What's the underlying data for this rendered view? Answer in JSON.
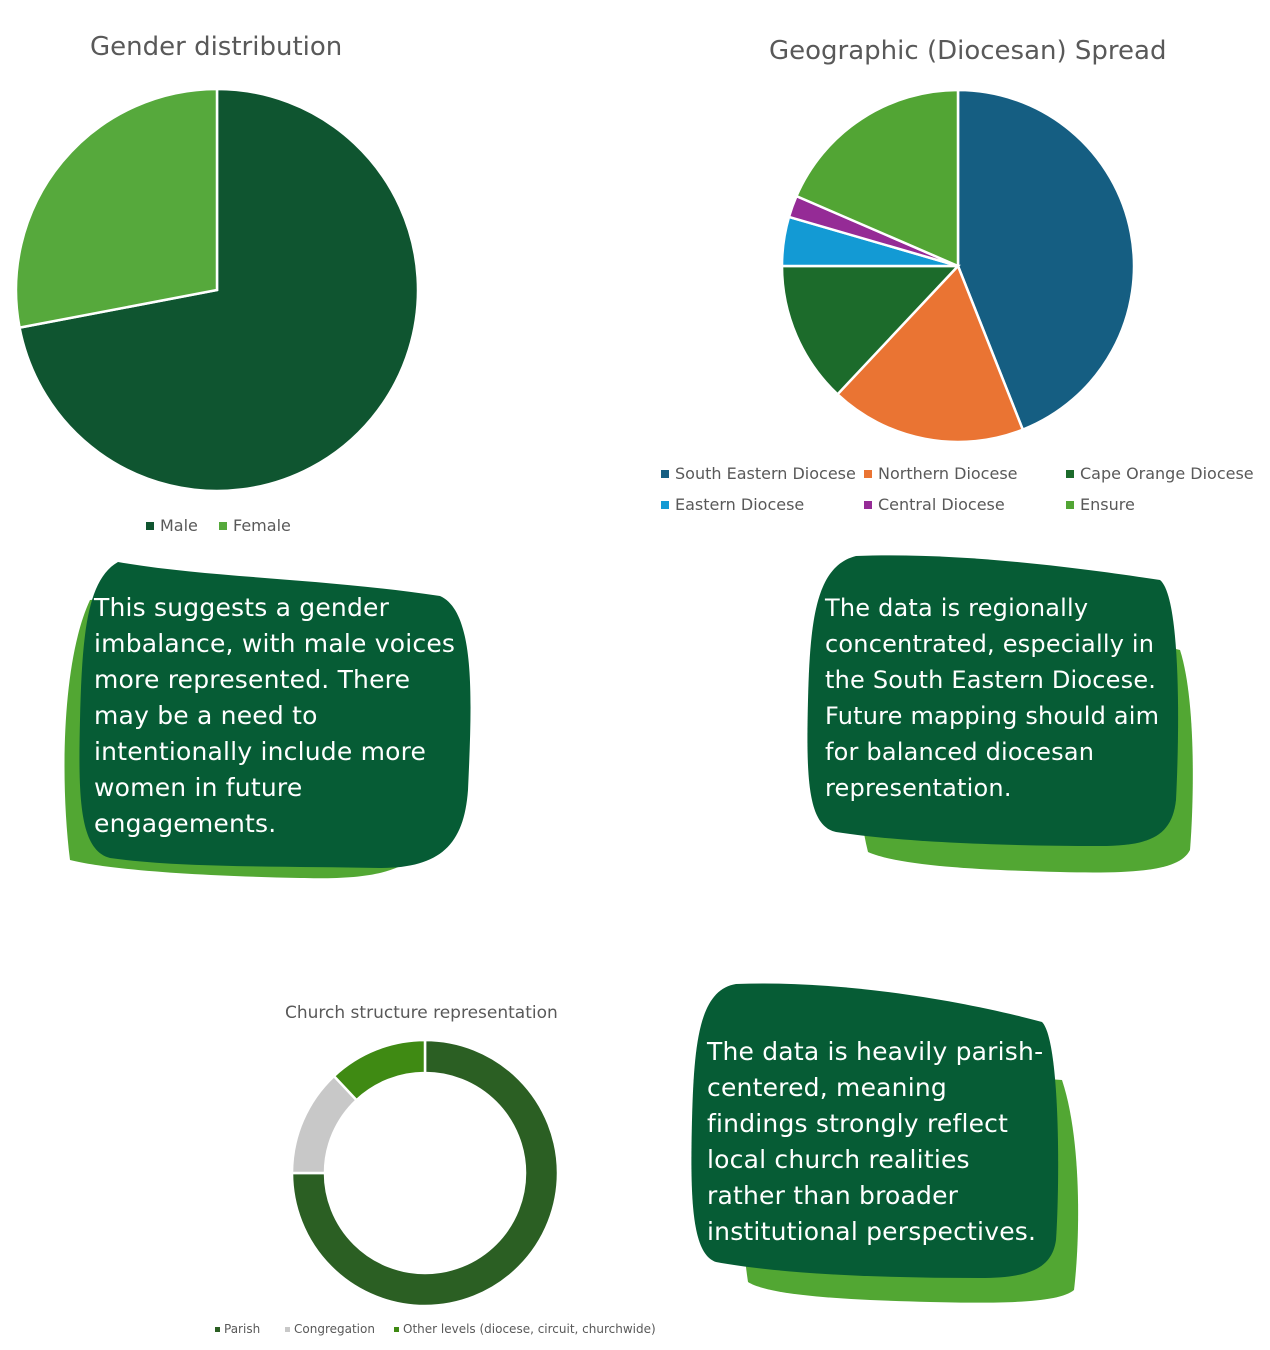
{
  "charts": {
    "chart_data": [
      {
        "type": "pie",
        "title": "Gender distribution",
        "categories": [
          "Male",
          "Female"
        ],
        "values": [
          72,
          28
        ],
        "colors": [
          "#0f5530",
          "#56a93c"
        ],
        "legend": "bottom"
      },
      {
        "type": "pie",
        "title": "Geographic (Diocesan) Spread",
        "categories": [
          "South Eastern Diocese",
          "Northern Diocese",
          "Cape Orange Diocese",
          "Eastern Diocese",
          "Central Diocese",
          "Ensure"
        ],
        "values": [
          44,
          18,
          13,
          4.5,
          2,
          18.5
        ],
        "colors": [
          "#155e82",
          "#ea7433",
          "#1c6b2b",
          "#139ad4",
          "#952b96",
          "#52a534"
        ],
        "legend": "bottom"
      },
      {
        "type": "pie",
        "donut": true,
        "title": "Church structure representation",
        "categories": [
          "Parish",
          "Congregation",
          "Other levels (diocese, circuit, churchwide)"
        ],
        "values": [
          75,
          13,
          12
        ],
        "colors": [
          "#2b5f23",
          "#c8c8c8",
          "#3f8a13"
        ],
        "legend": "bottom"
      }
    ]
  },
  "notes": {
    "gender": [
      "This suggests a gender",
      "imbalance, with male voices",
      "more represented. There",
      "may be a need to",
      "intentionally include more",
      "women in future",
      "engagements."
    ],
    "geographic": [
      "The data is regionally",
      "concentrated, especially in",
      "the South Eastern Diocese.",
      "Future mapping should aim",
      "for balanced diocesan",
      "representation."
    ],
    "structure": [
      "The data is heavily parish-",
      "centered, meaning",
      "findings strongly reflect",
      "local church realities",
      "rather than broader",
      "institutional perspectives."
    ]
  },
  "theme": {
    "note_dark": "#065c35",
    "note_light": "#52a733"
  }
}
